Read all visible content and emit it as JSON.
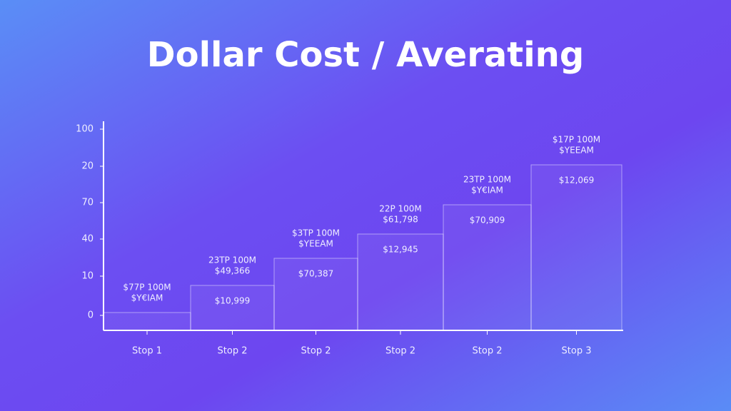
{
  "title": "Dollar Cost / Averating",
  "y_axis_labels": [
    "100",
    "20",
    "70",
    "40",
    "10",
    "0"
  ],
  "steps": [
    {
      "label": "Stop 1",
      "top_line_1": "$77P 100M",
      "top_line_2": "$Y€IAM"
    },
    {
      "label": "Stop 2",
      "top_line_1": "23TP 100M",
      "top_line_2": "$49,366",
      "inner": "$10,999"
    },
    {
      "label": "Stop 2",
      "top_line_1": "$3TP 100M",
      "top_line_2": "$YEEAM",
      "inner": "$70,387"
    },
    {
      "label": "Stop 2",
      "top_line_1": "22P 100M",
      "top_line_2": "$61,798",
      "inner": "$12,945"
    },
    {
      "label": "Stop 2",
      "top_line_1": "23TP 100M",
      "top_line_2": "$Y€IAM",
      "inner": "$70,909"
    },
    {
      "label": "Stop 3",
      "top_line_1": "$17P 100M",
      "top_line_2": "$YEEAM",
      "inner": "$12,069"
    }
  ]
}
